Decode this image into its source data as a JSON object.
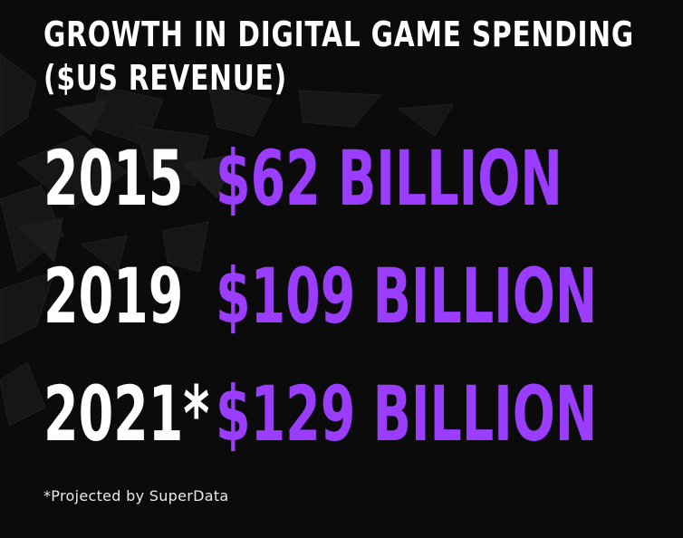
{
  "title_line1": "GROWTH IN DIGITAL GAME SPENDING",
  "title_line2": "($US REVENUE)",
  "rows": [
    {
      "year": "2015",
      "amount": "$62 BILLION"
    },
    {
      "year": "2019",
      "amount": "$109 BILLION"
    },
    {
      "year": "2021*",
      "amount": "$129 BILLION"
    }
  ],
  "footnote": "*Projected by SuperData",
  "colors": {
    "background": "#0b0b0c",
    "year_text": "#ffffff",
    "amount_text": "#9a3dff"
  }
}
